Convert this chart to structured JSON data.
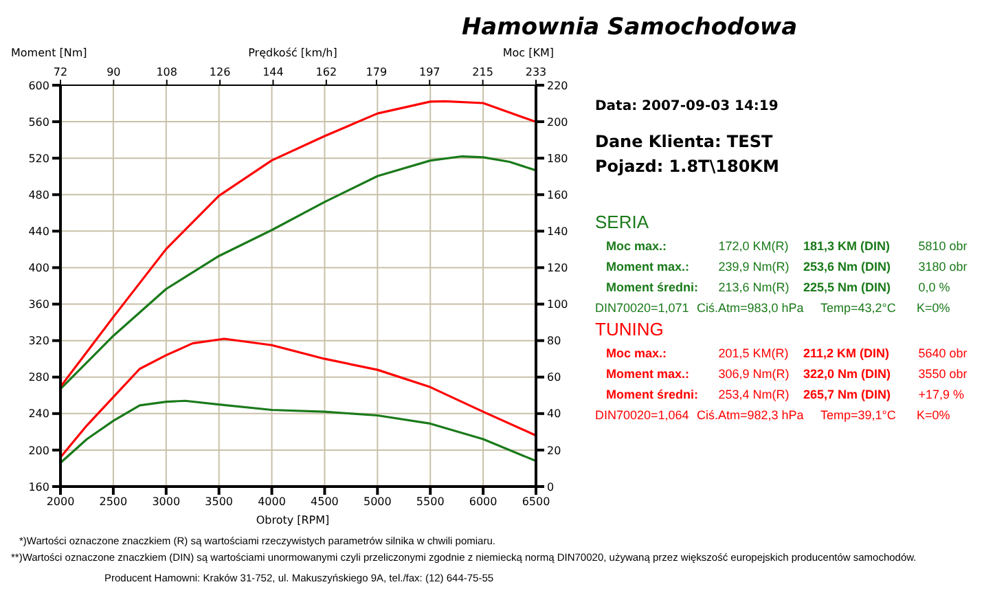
{
  "chart_data": {
    "type": "line",
    "title": "Hamownia Samochodowa",
    "xlabel": "Obroty [RPM]",
    "ylabel": "Moment [Nm]",
    "y2label": "Moc [KM]",
    "x2label": "Prędkość [km/h]",
    "xlim": [
      2000,
      6500
    ],
    "xticks": [
      2000,
      2500,
      3000,
      3500,
      4000,
      4500,
      5000,
      5500,
      6000,
      6500
    ],
    "x2lim": [
      72,
      233
    ],
    "x2ticks": [
      72,
      90,
      108,
      126,
      144,
      162,
      179,
      197,
      215,
      233
    ],
    "ylim": [
      160,
      600
    ],
    "yticks": [
      160,
      200,
      240,
      280,
      320,
      360,
      400,
      440,
      480,
      520,
      560,
      600
    ],
    "y2lim": [
      0,
      220
    ],
    "y2ticks": [
      0,
      20,
      40,
      60,
      80,
      100,
      120,
      140,
      160,
      180,
      200,
      220
    ],
    "grid": true,
    "marker": "none",
    "line_style": "solid",
    "series": [
      {
        "color": "#1a7a1a",
        "axis": "y2",
        "x": [
          2000,
          2500,
          3000,
          3500,
          4000,
          4500,
          5000,
          5500,
          5800,
          6000,
          6250,
          6500
        ],
        "values": [
          53.5,
          82.6,
          108.3,
          126.4,
          140.6,
          156.0,
          170.2,
          178.7,
          181.0,
          180.5,
          178,
          173.3
        ]
      },
      {
        "color": "#ff0000",
        "axis": "y2",
        "x": [
          2000,
          2500,
          3000,
          3500,
          4000,
          4500,
          5000,
          5500,
          5640,
          6000,
          6250,
          6500
        ],
        "values": [
          54.7,
          92.9,
          130.2,
          159.4,
          178.8,
          192.1,
          204.5,
          211.0,
          211.2,
          210.2,
          205,
          199.9
        ]
      },
      {
        "color": "#1a7a1a",
        "x": [
          2000,
          2250,
          2500,
          2750,
          3000,
          3180,
          3500,
          4000,
          4500,
          5000,
          5500,
          6000,
          6500
        ],
        "values": [
          186,
          212,
          232,
          249,
          253,
          254,
          250,
          244,
          242,
          238,
          229,
          212,
          188
        ]
      },
      {
        "color": "#ff0000",
        "x": [
          2000,
          2250,
          2500,
          2750,
          3000,
          3250,
          3550,
          4000,
          4500,
          5000,
          5500,
          6000,
          6500
        ],
        "values": [
          192,
          227,
          258,
          289,
          304,
          317,
          322,
          315,
          300,
          288,
          269,
          242,
          216
        ]
      }
    ],
    "annotations": [
      "Data: 2007-09-03  14:19",
      "Dane Klienta: TEST",
      "Pojazd: 1.8T\\180KM",
      "SERIA",
      "Moc max.:",
      "172,0 KM(R)",
      "181,3 KM (DIN)",
      "5810 obr",
      "Moment max.:",
      "239,9 Nm(R)",
      "253,6 Nm (DIN)",
      "3180 obr",
      "Moment średni:",
      "213,6 Nm(R)",
      "225,5 Nm (DIN)",
      "0,0 %",
      "DIN70020=1,071",
      "Ciś.Atm=983,0 hPa",
      "Temp=43,2°C",
      "K=0%",
      "TUNING",
      "Moc max.:",
      "201,5 KM(R)",
      "211,2 KM (DIN)",
      "5640 obr",
      "Moment max.:",
      "306,9 Nm(R)",
      "322,0 Nm (DIN)",
      "3550 obr",
      "Moment średni:",
      "253,4 Nm(R)",
      "265,7 Nm (DIN)",
      "+17,9 %",
      "DIN70020=1,064",
      "Ciś.Atm=982,3 hPa",
      "Temp=39,1°C",
      "K=0%",
      "*)Wartości oznaczone znaczkiem (R) są wartościami rzeczywistych parametrów silnika w chwili pomiaru.",
      "**)Wartości oznaczone znaczkiem (DIN) są wartościami unormowanymi czyli przeliczonymi zgodnie z niemiecką normą DIN70020, używaną przez większość europejskich producentów samochodów.",
      "Producent Hamowni: Kraków 31-752, ul. Makuszyńskiego 9A, tel./fax: (12) 644-75-55"
    ]
  }
}
